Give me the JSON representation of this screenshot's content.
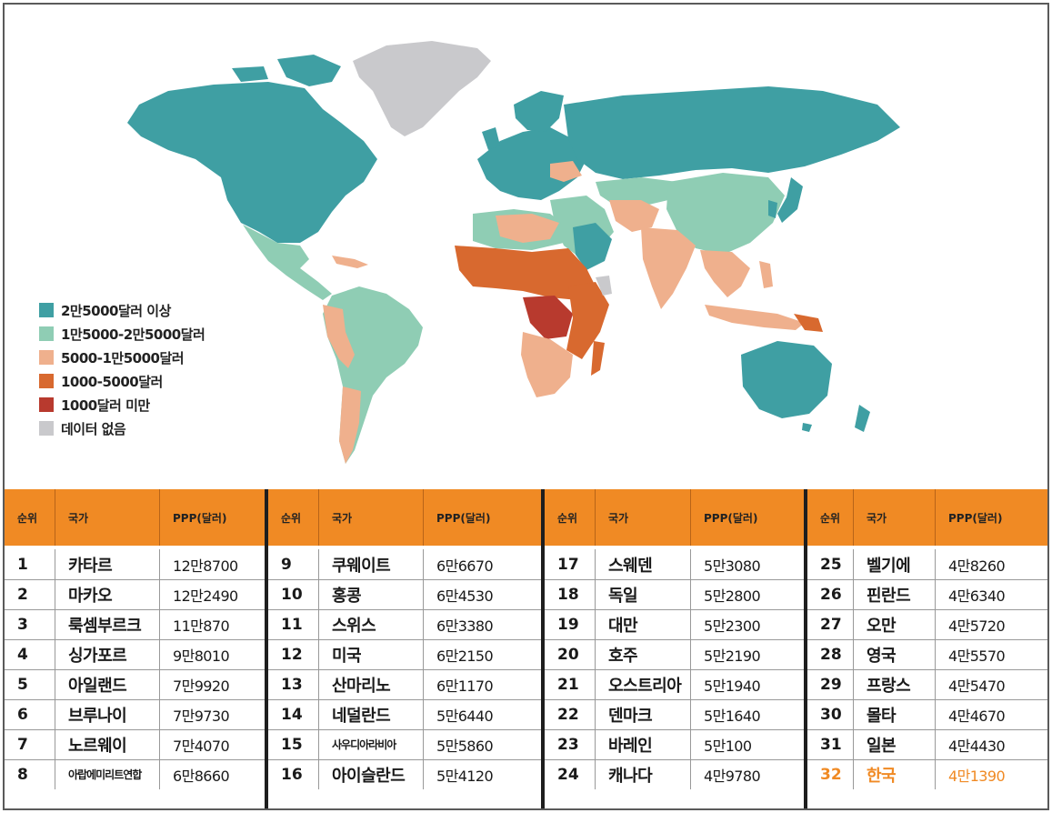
{
  "legend": [
    {
      "label": "2만5000달러 이상",
      "color": "#3f9fa3"
    },
    {
      "label": "1만5000-2만5000달러",
      "color": "#8fcdb4"
    },
    {
      "label": "5000-1만5000달러",
      "color": "#efb08d"
    },
    {
      "label": "1000-5000달러",
      "color": "#d8692f"
    },
    {
      "label": "1000달러 미만",
      "color": "#b83a2e"
    },
    {
      "label": "데이터 없음",
      "color": "#c9c9cc"
    }
  ],
  "colors": {
    "header_orange": "#f08a24",
    "highlight_orange": "#f08a24",
    "ocean": "#ffffff"
  },
  "table": {
    "headers": {
      "rank": "순위",
      "country": "국가",
      "ppp": "PPP(달러)"
    },
    "blocks": [
      [
        {
          "rank": "1",
          "country": "카타르",
          "ppp": "12만8700"
        },
        {
          "rank": "2",
          "country": "마카오",
          "ppp": "12만2490"
        },
        {
          "rank": "3",
          "country": "룩셈부르크",
          "ppp": "11만870"
        },
        {
          "rank": "4",
          "country": "싱가포르",
          "ppp": "9만8010"
        },
        {
          "rank": "5",
          "country": "아일랜드",
          "ppp": "7만9920"
        },
        {
          "rank": "6",
          "country": "브루나이",
          "ppp": "7만9730"
        },
        {
          "rank": "7",
          "country": "노르웨이",
          "ppp": "7만4070"
        },
        {
          "rank": "8",
          "country": "아랍에미리트연합",
          "ppp": "6만8660"
        }
      ],
      [
        {
          "rank": "9",
          "country": "쿠웨이트",
          "ppp": "6만6670"
        },
        {
          "rank": "10",
          "country": "홍콩",
          "ppp": "6만4530"
        },
        {
          "rank": "11",
          "country": "스위스",
          "ppp": "6만3380"
        },
        {
          "rank": "12",
          "country": "미국",
          "ppp": "6만2150"
        },
        {
          "rank": "13",
          "country": "산마리노",
          "ppp": "6만1170"
        },
        {
          "rank": "14",
          "country": "네덜란드",
          "ppp": "5만6440"
        },
        {
          "rank": "15",
          "country": "사우디아라비아",
          "ppp": "5만5860"
        },
        {
          "rank": "16",
          "country": "아이슬란드",
          "ppp": "5만4120"
        }
      ],
      [
        {
          "rank": "17",
          "country": "스웨덴",
          "ppp": "5만3080"
        },
        {
          "rank": "18",
          "country": "독일",
          "ppp": "5만2800"
        },
        {
          "rank": "19",
          "country": "대만",
          "ppp": "5만2300"
        },
        {
          "rank": "20",
          "country": "호주",
          "ppp": "5만2190"
        },
        {
          "rank": "21",
          "country": "오스트리아",
          "ppp": "5만1940"
        },
        {
          "rank": "22",
          "country": "덴마크",
          "ppp": "5만1640"
        },
        {
          "rank": "23",
          "country": "바레인",
          "ppp": "5만100"
        },
        {
          "rank": "24",
          "country": "캐나다",
          "ppp": "4만9780"
        }
      ],
      [
        {
          "rank": "25",
          "country": "벨기에",
          "ppp": "4만8260"
        },
        {
          "rank": "26",
          "country": "핀란드",
          "ppp": "4만6340"
        },
        {
          "rank": "27",
          "country": "오만",
          "ppp": "4만5720"
        },
        {
          "rank": "28",
          "country": "영국",
          "ppp": "4만5570"
        },
        {
          "rank": "29",
          "country": "프랑스",
          "ppp": "4만5470"
        },
        {
          "rank": "30",
          "country": "몰타",
          "ppp": "4만4670"
        },
        {
          "rank": "31",
          "country": "일본",
          "ppp": "4만4430"
        },
        {
          "rank": "32",
          "country": "한국",
          "ppp": "4만1390",
          "highlight": true
        }
      ]
    ]
  }
}
